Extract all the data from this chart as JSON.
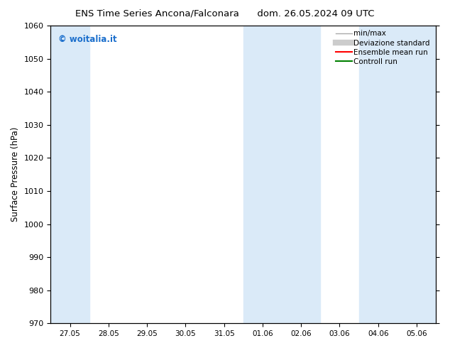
{
  "title_left": "ENS Time Series Ancona/Falconara",
  "title_right": "dom. 26.05.2024 09 UTC",
  "ylabel": "Surface Pressure (hPa)",
  "ylim": [
    970,
    1060
  ],
  "yticks": [
    970,
    980,
    990,
    1000,
    1010,
    1020,
    1030,
    1040,
    1050,
    1060
  ],
  "xtick_labels": [
    "27.05",
    "28.05",
    "29.05",
    "30.05",
    "31.05",
    "01.06",
    "02.06",
    "03.06",
    "04.06",
    "05.06"
  ],
  "background_color": "#ffffff",
  "plot_bg_color": "#ffffff",
  "shaded_band_color": "#daeaf8",
  "shaded_x_indices": [
    0,
    5,
    6,
    8,
    9
  ],
  "watermark_text": "© woitalia.it",
  "watermark_color": "#1a6ecc",
  "legend_items": [
    {
      "label": "min/max",
      "color": "#aaaaaa",
      "lw": 1.0
    },
    {
      "label": "Deviazione standard",
      "color": "#cccccc",
      "lw": 6.0
    },
    {
      "label": "Ensemble mean run",
      "color": "#ff0000",
      "lw": 1.5
    },
    {
      "label": "Controll run",
      "color": "#008000",
      "lw": 1.5
    }
  ],
  "fig_width": 6.34,
  "fig_height": 4.9,
  "dpi": 100
}
